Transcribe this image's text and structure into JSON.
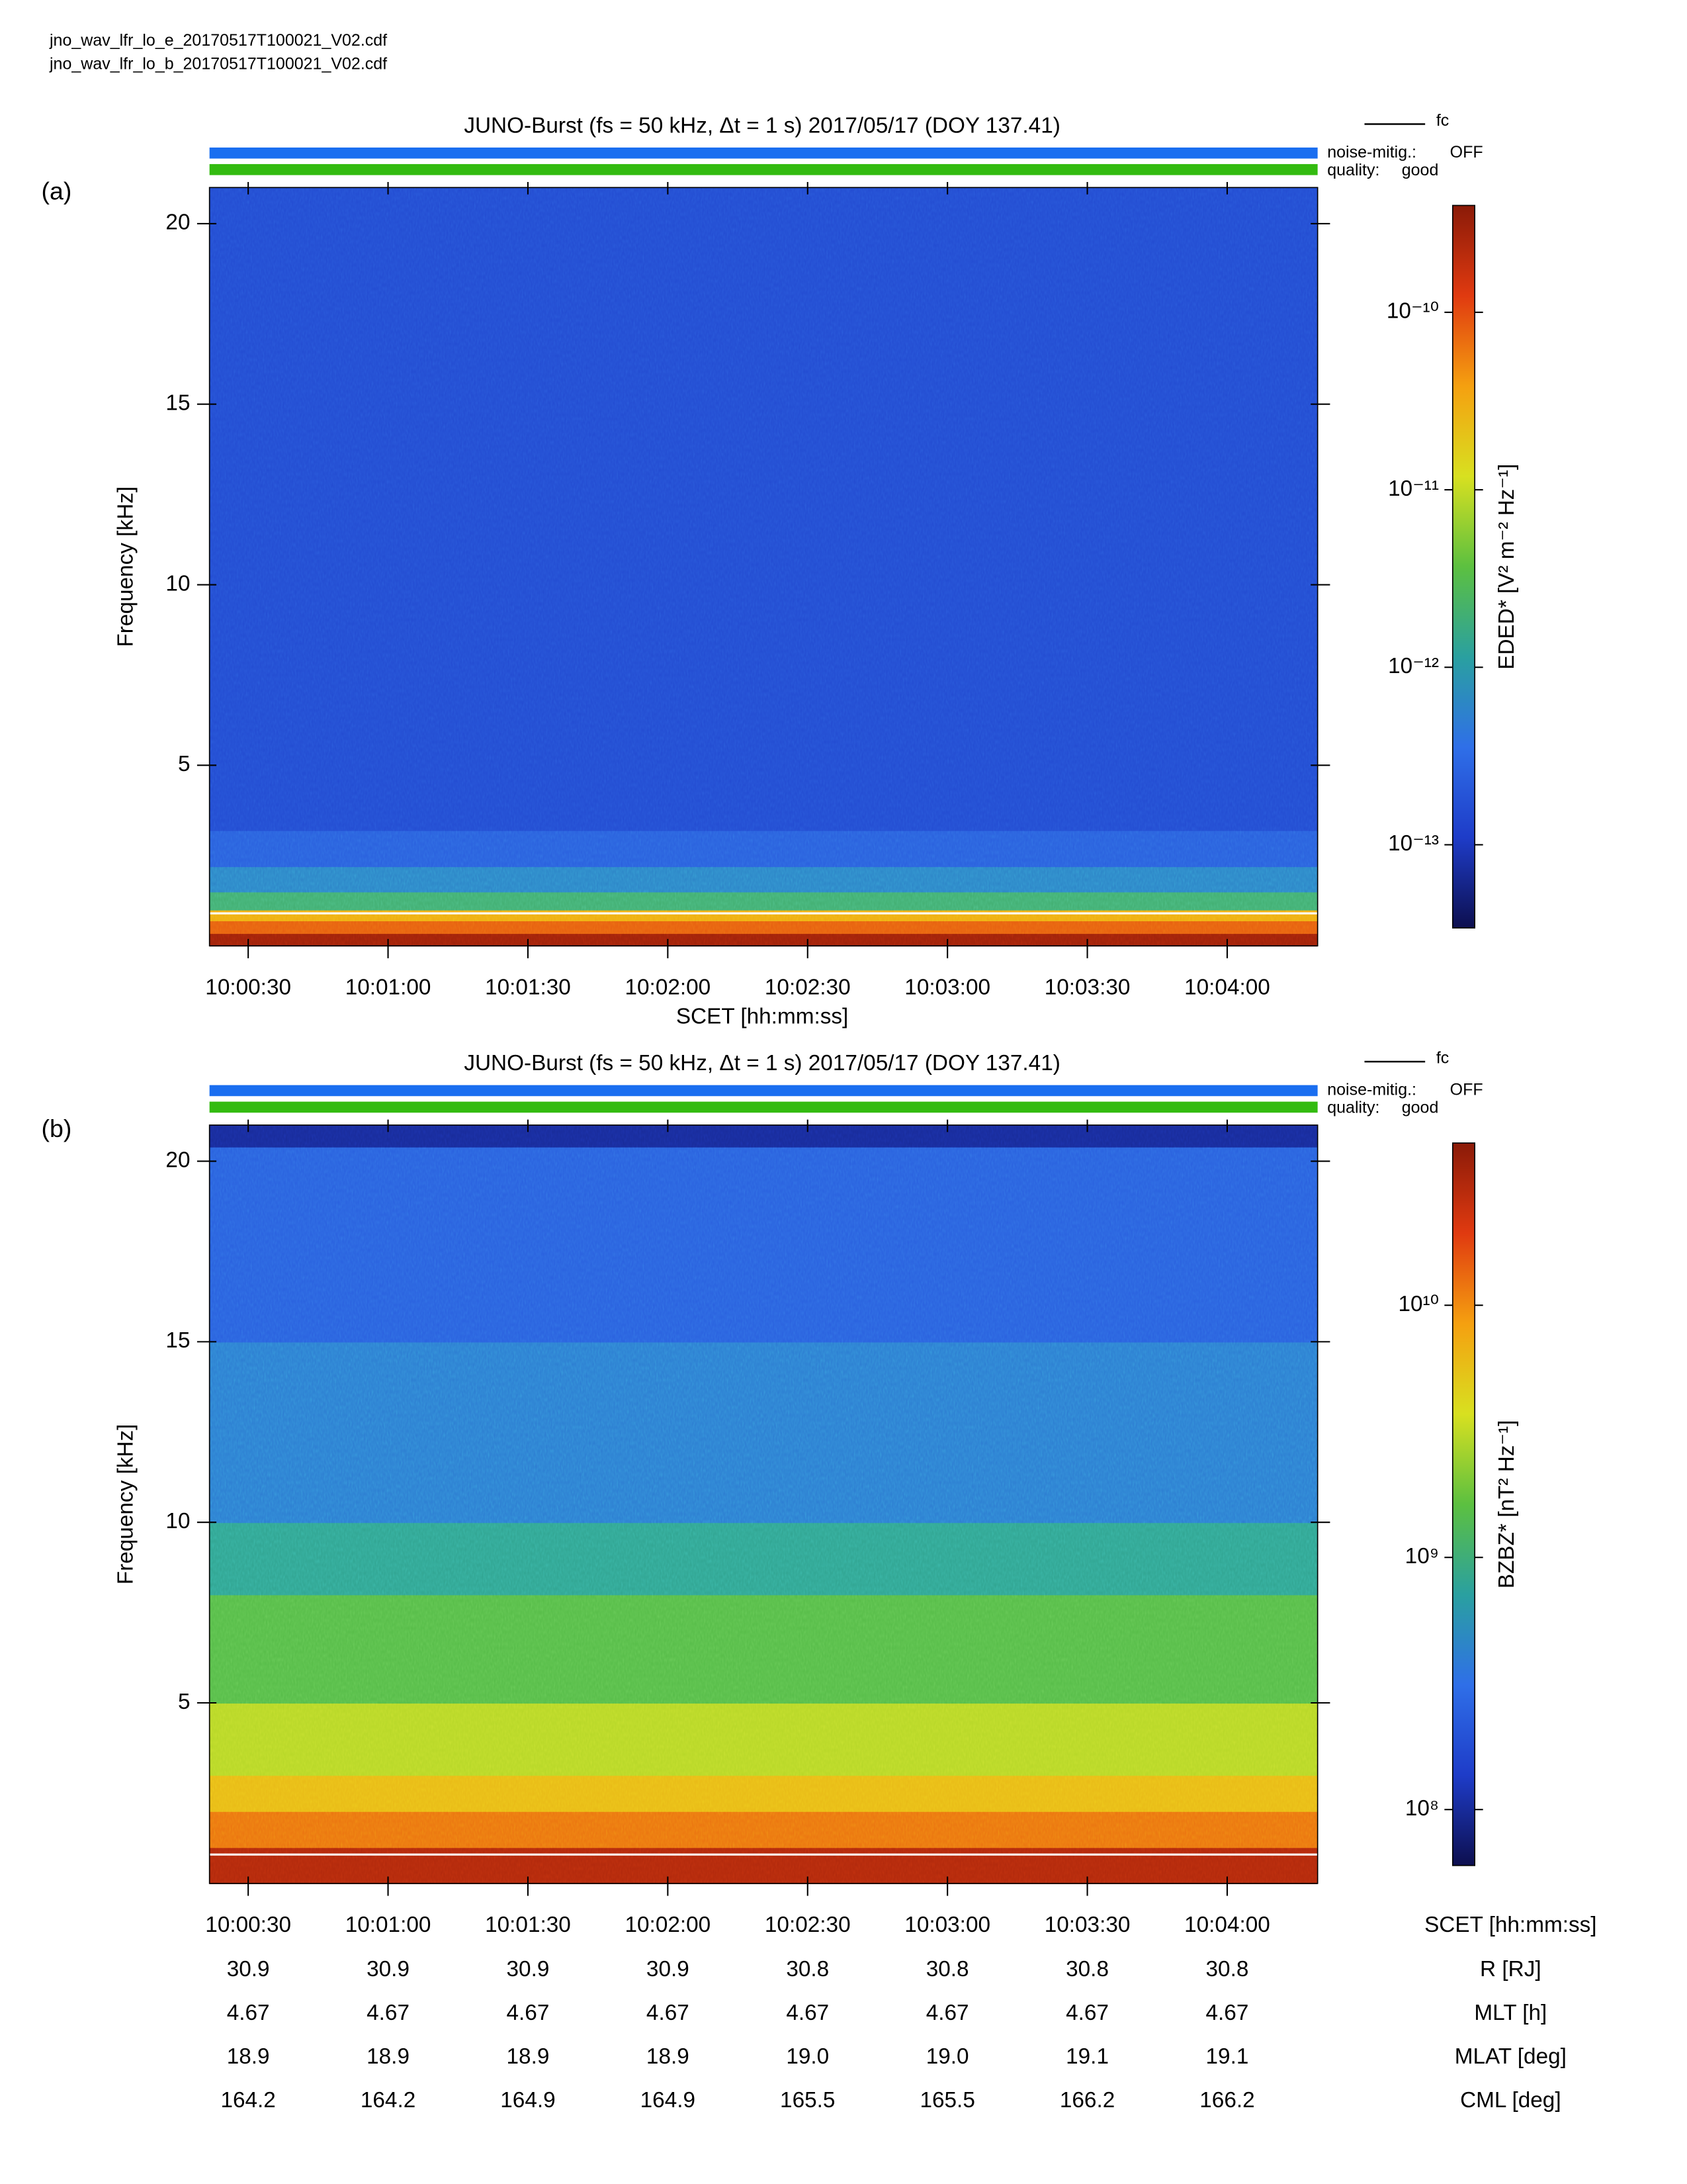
{
  "files": [
    "jno_wav_lfr_lo_e_20170517T100021_V02.cdf",
    "jno_wav_lfr_lo_b_20170517T100021_V02.cdf"
  ],
  "chart_data": [
    {
      "type": "heatmap",
      "panel": "(a)",
      "title": "JUNO-Burst (fs = 50 kHz, Δt = 1 s)  2017/05/17 (DOY 137.41)",
      "ylabel": "Frequency [kHz]",
      "xlabel": "SCET [hh:mm:ss]",
      "xlim": [
        36021.7,
        36259.4
      ],
      "xticks": [
        {
          "value": 36030,
          "label": "10:00:30"
        },
        {
          "value": 36060,
          "label": "10:01:00"
        },
        {
          "value": 36090,
          "label": "10:01:30"
        },
        {
          "value": 36120,
          "label": "10:02:00"
        },
        {
          "value": 36150,
          "label": "10:02:30"
        },
        {
          "value": 36180,
          "label": "10:03:00"
        },
        {
          "value": 36210,
          "label": "10:03:30"
        },
        {
          "value": 36240,
          "label": "10:04:00"
        }
      ],
      "ylim": [
        0,
        21
      ],
      "yticks": [
        5,
        10,
        15,
        20
      ],
      "y_bins": [
        0,
        0.35,
        0.7,
        1.0,
        1.5,
        2.2,
        3.2,
        21
      ],
      "values": [
        3e-10,
        8e-11,
        3e-11,
        2e-12,
        6e-13,
        2.5e-13,
        1.6e-13
      ],
      "log_color": true,
      "clim": [
        3.4e-14,
        4e-10
      ],
      "cticks": [
        {
          "value": 1e-10,
          "label": "10⁻¹⁰"
        },
        {
          "value": 1e-11,
          "label": "10⁻¹¹"
        },
        {
          "value": 1e-12,
          "label": "10⁻¹²"
        },
        {
          "value": 1e-13,
          "label": "10⁻¹³"
        }
      ],
      "clabel": "EDED* [V² m⁻² Hz⁻¹]",
      "colormap": [
        "#0d0f4f",
        "#1e3cc8",
        "#2f6fe8",
        "#2aa0a0",
        "#5cc040",
        "#d8e020",
        "#f5a010",
        "#e03a10",
        "#8a1a08"
      ],
      "fc": {
        "label": "fc",
        "value": 0.9,
        "color": "#ffffff"
      },
      "noise_mitigation": {
        "label": "noise-mitig.:",
        "value": "OFF",
        "color": "#1a6ef0"
      },
      "quality": {
        "label": "quality:",
        "value": "good",
        "color": "#33bb10"
      }
    },
    {
      "type": "heatmap",
      "panel": "(b)",
      "title": "JUNO-Burst (fs = 50 kHz, Δt = 1 s)  2017/05/17 (DOY 137.41)",
      "ylabel": "Frequency [kHz]",
      "xlabel": "SCET [hh:mm:ss]",
      "xlim": [
        36021.7,
        36259.4
      ],
      "xticks": [
        {
          "value": 36030,
          "label": "10:00:30"
        },
        {
          "value": 36060,
          "label": "10:01:00"
        },
        {
          "value": 36090,
          "label": "10:01:30"
        },
        {
          "value": 36120,
          "label": "10:02:00"
        },
        {
          "value": 36150,
          "label": "10:02:30"
        },
        {
          "value": 36180,
          "label": "10:03:00"
        },
        {
          "value": 36210,
          "label": "10:03:30"
        },
        {
          "value": 36240,
          "label": "10:04:00"
        }
      ],
      "ylim": [
        0,
        21
      ],
      "yticks": [
        5,
        10,
        15,
        20
      ],
      "y_bins": [
        0,
        1,
        2,
        3,
        5,
        8,
        10,
        15,
        20.4,
        21
      ],
      "values": [
        30000000000.0,
        12000000000.0,
        6000000000.0,
        3000000000.0,
        1500000000.0,
        800000000.0,
        400000000.0,
        250000000.0,
        100000000.0
      ],
      "log_color": true,
      "clim": [
        60000000.0,
        44000000000.0
      ],
      "cticks": [
        {
          "value": 10000000000.0,
          "label": "10¹⁰"
        },
        {
          "value": 1000000000.0,
          "label": "10⁹"
        },
        {
          "value": 100000000.0,
          "label": "10⁸"
        }
      ],
      "clabel": "BZBZ* [nT² Hz⁻¹]",
      "colormap": [
        "#0d0f4f",
        "#1e3cc8",
        "#2f6fe8",
        "#2aa0a0",
        "#5cc040",
        "#d8e020",
        "#f5a010",
        "#e03a10",
        "#8a1a08"
      ],
      "fc": {
        "label": "fc",
        "value": 0.8,
        "color": "#ffffff"
      },
      "noise_mitigation": {
        "label": "noise-mitig.:",
        "value": "OFF",
        "color": "#1a6ef0"
      },
      "quality": {
        "label": "quality:",
        "value": "good",
        "color": "#33bb10"
      }
    }
  ],
  "ephemeris": {
    "rows": [
      {
        "label": "R [RJ]",
        "values": [
          "30.9",
          "30.9",
          "30.9",
          "30.9",
          "30.8",
          "30.8",
          "30.8",
          "30.8"
        ]
      },
      {
        "label": "MLT [h]",
        "values": [
          "4.67",
          "4.67",
          "4.67",
          "4.67",
          "4.67",
          "4.67",
          "4.67",
          "4.67"
        ]
      },
      {
        "label": "MLAT [deg]",
        "values": [
          "18.9",
          "18.9",
          "18.9",
          "18.9",
          "19.0",
          "19.0",
          "19.1",
          "19.1"
        ]
      },
      {
        "label": "CML [deg]",
        "values": [
          "164.2",
          "164.2",
          "164.9",
          "164.9",
          "165.5",
          "165.5",
          "166.2",
          "166.2"
        ]
      }
    ]
  }
}
